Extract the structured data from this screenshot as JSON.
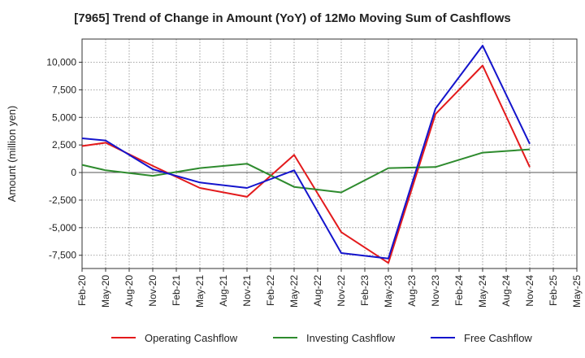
{
  "chart_data": {
    "type": "line",
    "title": "[7965]  Trend of Change in Amount (YoY) of 12Mo Moving Sum of Cashflows",
    "xlabel": "",
    "ylabel": "Amount (million yen)",
    "ylim": [
      -8700,
      12100
    ],
    "yticks": [
      10000,
      7500,
      5000,
      2500,
      0,
      -2500,
      -5000,
      -7500
    ],
    "ytick_labels": [
      "10,000",
      "7,500",
      "5,000",
      "2,500",
      "0",
      "-2,500",
      "-5,000",
      "-7,500"
    ],
    "categories": [
      "Feb-20",
      "May-20",
      "Aug-20",
      "Nov-20",
      "Feb-21",
      "May-21",
      "Aug-21",
      "Nov-21",
      "Feb-22",
      "May-22",
      "Aug-22",
      "Nov-22",
      "Feb-23",
      "May-23",
      "Aug-23",
      "Nov-23",
      "Feb-24",
      "May-24",
      "Aug-24",
      "Nov-24",
      "Feb-25",
      "May-25"
    ],
    "grid": true,
    "legend_position": "bottom",
    "series": [
      {
        "name": "Operating Cashflow",
        "color": "#e31a1c",
        "values": [
          2400,
          2700,
          null,
          600,
          null,
          -1400,
          null,
          -2200,
          null,
          1600,
          null,
          -5400,
          null,
          -8200,
          null,
          5300,
          null,
          9700,
          null,
          500,
          null,
          null
        ]
      },
      {
        "name": "Investing Cashflow",
        "color": "#2e8b2e",
        "values": [
          700,
          200,
          null,
          -300,
          null,
          400,
          null,
          800,
          null,
          -1300,
          null,
          -1800,
          null,
          400,
          null,
          500,
          null,
          1800,
          null,
          2100,
          null,
          null
        ]
      },
      {
        "name": "Free Cashflow",
        "color": "#1414cc",
        "values": [
          3100,
          2900,
          null,
          300,
          null,
          -900,
          null,
          -1400,
          null,
          200,
          null,
          -7300,
          null,
          -7800,
          null,
          5800,
          null,
          11500,
          null,
          2600,
          null,
          null
        ]
      }
    ]
  }
}
